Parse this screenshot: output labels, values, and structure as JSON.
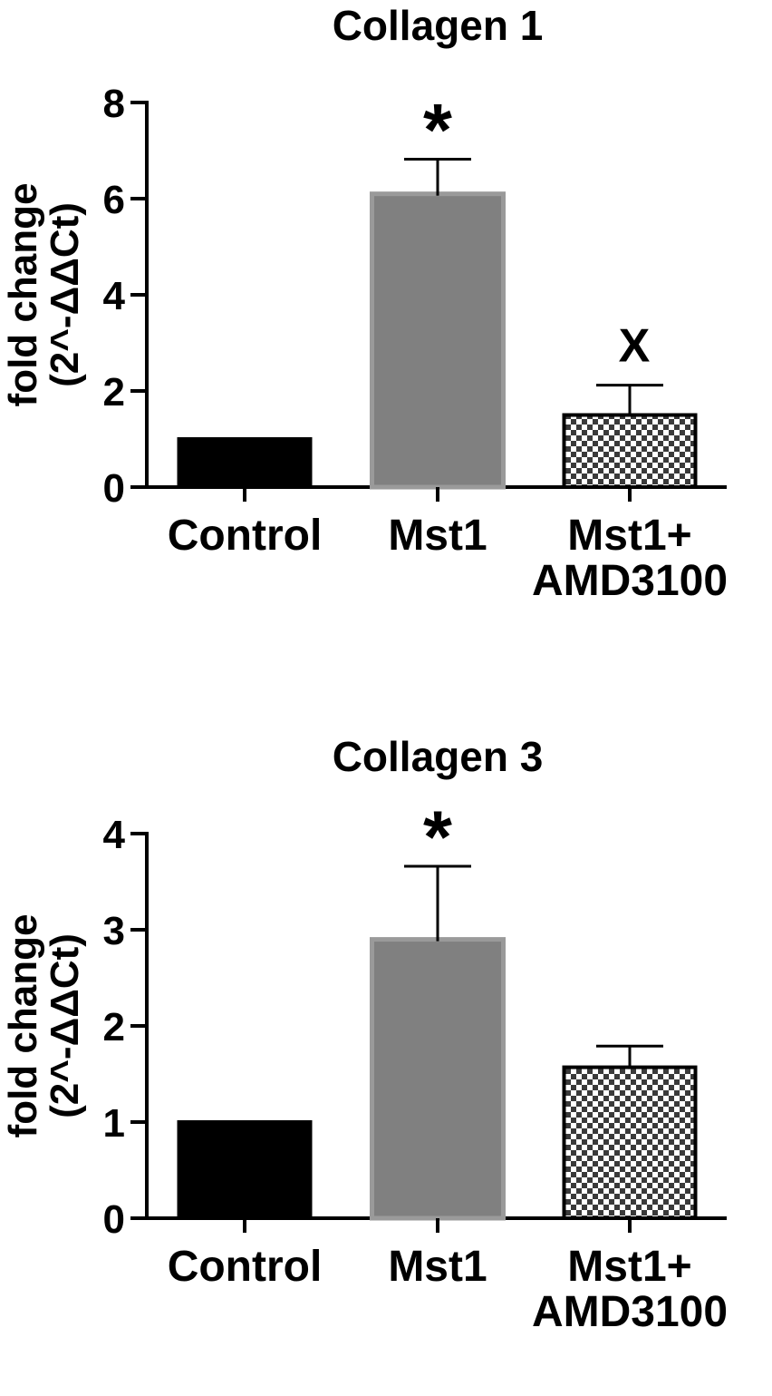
{
  "chart_data": [
    {
      "type": "bar",
      "title": "Collagen 1",
      "ylabel_lines": [
        "fold change",
        "(2^-ΔΔCt)"
      ],
      "ylim": [
        0,
        8
      ],
      "yticks": [
        0,
        2,
        4,
        6,
        8
      ],
      "categories": [
        [
          "Control"
        ],
        [
          "Mst1"
        ],
        [
          "Mst1+",
          "AMD3100"
        ]
      ],
      "values": [
        1.0,
        6.1,
        1.5
      ],
      "errors": [
        0,
        0.72,
        0.62
      ],
      "annotations": [
        "",
        "*",
        "X"
      ],
      "colors": [
        "#000000",
        "#808080",
        "checker"
      ]
    },
    {
      "type": "bar",
      "title": "Collagen 3",
      "ylabel_lines": [
        "fold change",
        "(2^-ΔΔCt)"
      ],
      "ylim": [
        0,
        4
      ],
      "yticks": [
        0,
        1,
        2,
        3,
        4
      ],
      "categories": [
        [
          "Control"
        ],
        [
          "Mst1"
        ],
        [
          "Mst1+",
          "AMD3100"
        ]
      ],
      "values": [
        1.0,
        2.9,
        1.57
      ],
      "errors": [
        0,
        0.76,
        0.22
      ],
      "annotations": [
        "",
        "*",
        ""
      ],
      "colors": [
        "#000000",
        "#808080",
        "checker"
      ]
    }
  ]
}
